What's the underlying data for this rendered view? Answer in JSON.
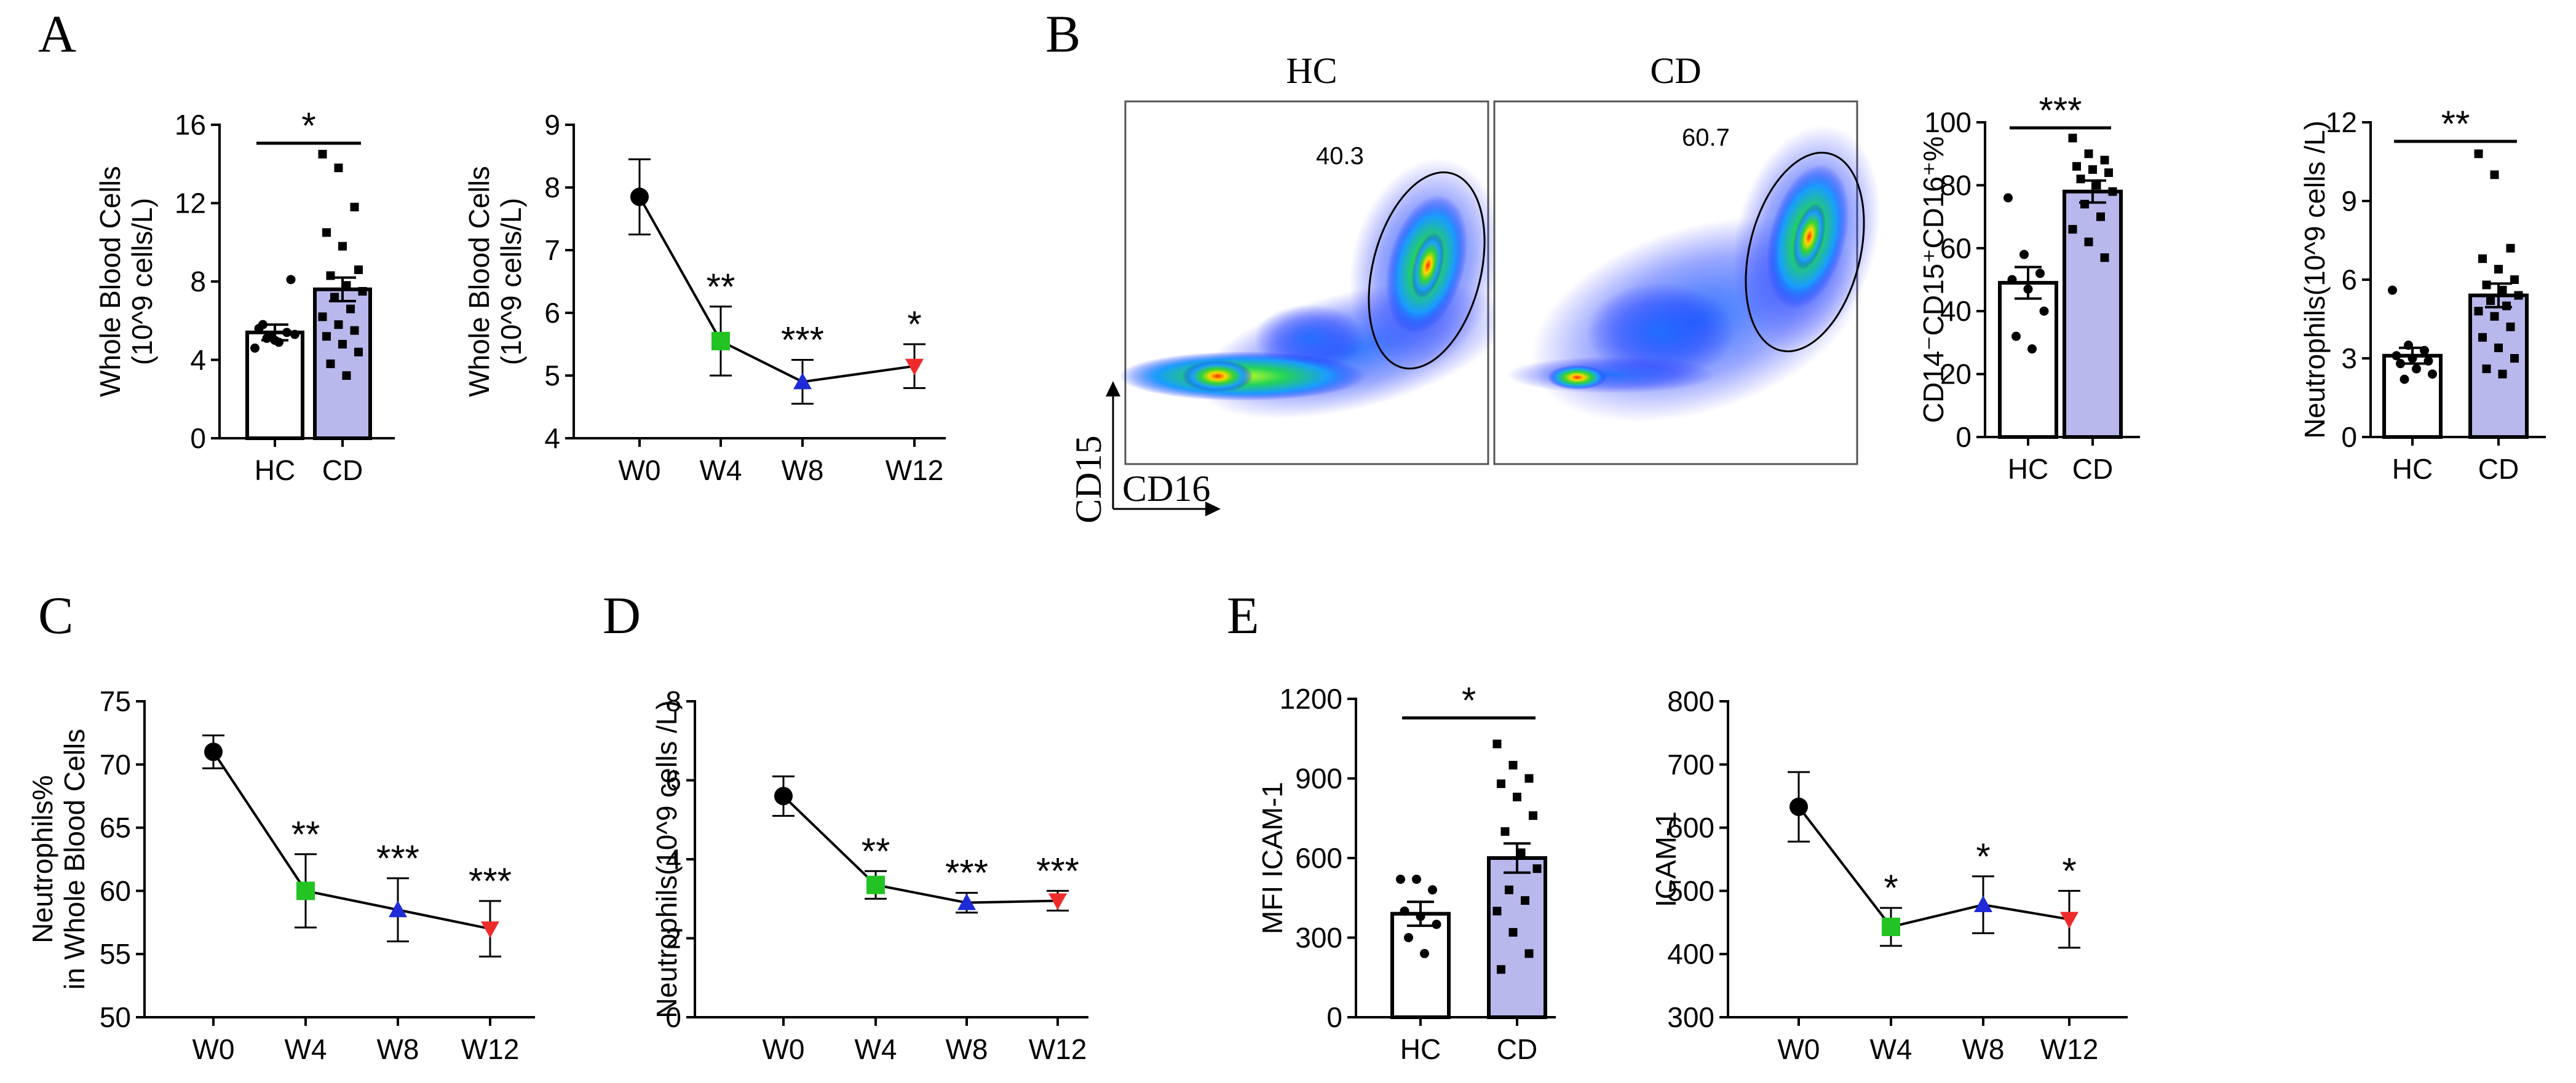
{
  "panels": {
    "A": "A",
    "B": "B",
    "C": "C",
    "D": "D",
    "E": "E"
  },
  "colors": {
    "bar_cd": "#b8b8ec",
    "bar_hc": "#ffffff",
    "w0": "#000000",
    "w4": "#22c322",
    "w8": "#1f2bd6",
    "w12": "#ee2b2b"
  },
  "chart_data": [
    {
      "id": "A1",
      "type": "bar",
      "ylabel": [
        "Whole Blood Cells",
        "(10^9 cells/L)"
      ],
      "categories": [
        "HC",
        "CD"
      ],
      "values": [
        5.4,
        7.6
      ],
      "sem": [
        0.4,
        0.6
      ],
      "ylim": [
        0,
        16
      ],
      "yticks": [
        "0",
        "4",
        "8",
        "12",
        "16"
      ],
      "significance": "*",
      "points": [
        [
          4.6,
          5.2,
          5.4,
          5.6,
          5.0,
          8.1,
          5.8,
          4.9,
          5.3,
          5.1
        ],
        [
          14.5,
          13.8,
          11.8,
          10.5,
          9.8,
          8.6,
          8.3,
          7.8,
          7.5,
          7.2,
          6.6,
          6.2,
          5.8,
          5.5,
          5.2,
          4.8,
          4.4,
          3.8,
          3.2
        ]
      ]
    },
    {
      "id": "A2",
      "type": "line",
      "ylabel": [
        "Whole Blood Cells",
        "(10^9 cells/L)"
      ],
      "categories": [
        "W0",
        "W4",
        "W8",
        "W12"
      ],
      "values": [
        7.85,
        5.55,
        4.9,
        5.15
      ],
      "sem": [
        0.6,
        0.55,
        0.35,
        0.35
      ],
      "ylim": [
        4,
        9
      ],
      "yticks": [
        "4",
        "5",
        "6",
        "7",
        "8",
        "9"
      ],
      "significance": [
        "",
        "**",
        "***",
        "*"
      ]
    },
    {
      "id": "B1",
      "type": "bar",
      "ylabel": "CD14⁻CD15⁺CD16⁺%",
      "categories": [
        "HC",
        "CD"
      ],
      "values": [
        49,
        78
      ],
      "sem": [
        5,
        3.5
      ],
      "ylim": [
        0,
        100
      ],
      "yticks": [
        "0",
        "20",
        "40",
        "60",
        "80",
        "100"
      ],
      "significance": "***",
      "points": [
        [
          76,
          58,
          52,
          50,
          47,
          40,
          32,
          28
        ],
        [
          95,
          90,
          88,
          86,
          85,
          84,
          82,
          80,
          78,
          74,
          70,
          66,
          62,
          57
        ]
      ]
    },
    {
      "id": "B2",
      "type": "bar",
      "ylabel": "Neutrophils(10^9 cells /L)",
      "categories": [
        "HC",
        "CD"
      ],
      "values": [
        3.1,
        5.4
      ],
      "sem": [
        0.3,
        0.45
      ],
      "ylim": [
        0,
        12
      ],
      "yticks": [
        "0",
        "3",
        "6",
        "9",
        "12"
      ],
      "significance": "**",
      "points": [
        [
          5.6,
          3.5,
          3.3,
          3.1,
          3.0,
          2.9,
          2.8,
          2.6,
          2.4,
          2.2
        ],
        [
          10.8,
          10.0,
          7.2,
          6.8,
          6.4,
          6.0,
          5.8,
          5.6,
          5.4,
          5.2,
          5.0,
          4.8,
          4.6,
          4.2,
          3.8,
          3.4,
          3.0,
          2.6,
          2.4
        ]
      ]
    },
    {
      "id": "C",
      "type": "line",
      "ylabel": [
        "Neutrophils%",
        "in Whole Blood Cells"
      ],
      "categories": [
        "W0",
        "W4",
        "W8",
        "W12"
      ],
      "values": [
        71,
        60,
        58.5,
        57
      ],
      "sem": [
        1.3,
        2.9,
        2.5,
        2.2
      ],
      "ylim": [
        50,
        75
      ],
      "yticks": [
        "50",
        "55",
        "60",
        "65",
        "70",
        "75"
      ],
      "significance": [
        "",
        "**",
        "***",
        "***"
      ]
    },
    {
      "id": "D",
      "type": "line",
      "ylabel": "Neutrophils(10^9 cells /L)",
      "categories": [
        "W0",
        "W4",
        "W8",
        "W12"
      ],
      "values": [
        5.6,
        3.35,
        2.9,
        2.95
      ],
      "sem": [
        0.5,
        0.35,
        0.25,
        0.25
      ],
      "ylim": [
        0,
        8
      ],
      "yticks": [
        "0",
        "2",
        "4",
        "6",
        "8"
      ],
      "significance": [
        "",
        "**",
        "***",
        "***"
      ]
    },
    {
      "id": "E1",
      "type": "bar",
      "ylabel": "MFI ICAM-1",
      "categories": [
        "HC",
        "CD"
      ],
      "values": [
        390,
        600
      ],
      "sem": [
        45,
        55
      ],
      "ylim": [
        0,
        1200
      ],
      "yticks": [
        "0",
        "300",
        "600",
        "900",
        "1200"
      ],
      "significance": "*",
      "points": [
        [
          520,
          520,
          480,
          400,
          380,
          350,
          300,
          240
        ],
        [
          1030,
          950,
          900,
          880,
          830,
          760,
          700,
          620,
          560,
          480,
          440,
          400,
          320,
          240,
          180
        ]
      ]
    },
    {
      "id": "E2",
      "type": "line",
      "ylabel": "ICAM-1",
      "categories": [
        "W0",
        "W4",
        "W8",
        "W12"
      ],
      "values": [
        633,
        443,
        478,
        455
      ],
      "sem": [
        55,
        30,
        45,
        45
      ],
      "ylim": [
        300,
        800
      ],
      "yticks": [
        "300",
        "400",
        "500",
        "600",
        "700",
        "800"
      ],
      "significance": [
        "",
        "*",
        "*",
        "*"
      ]
    }
  ],
  "flow": {
    "hc_title": "HC",
    "cd_title": "CD",
    "hc_pct": "40.3",
    "cd_pct": "60.7",
    "y_axis": "CD15",
    "x_axis": "CD16"
  }
}
